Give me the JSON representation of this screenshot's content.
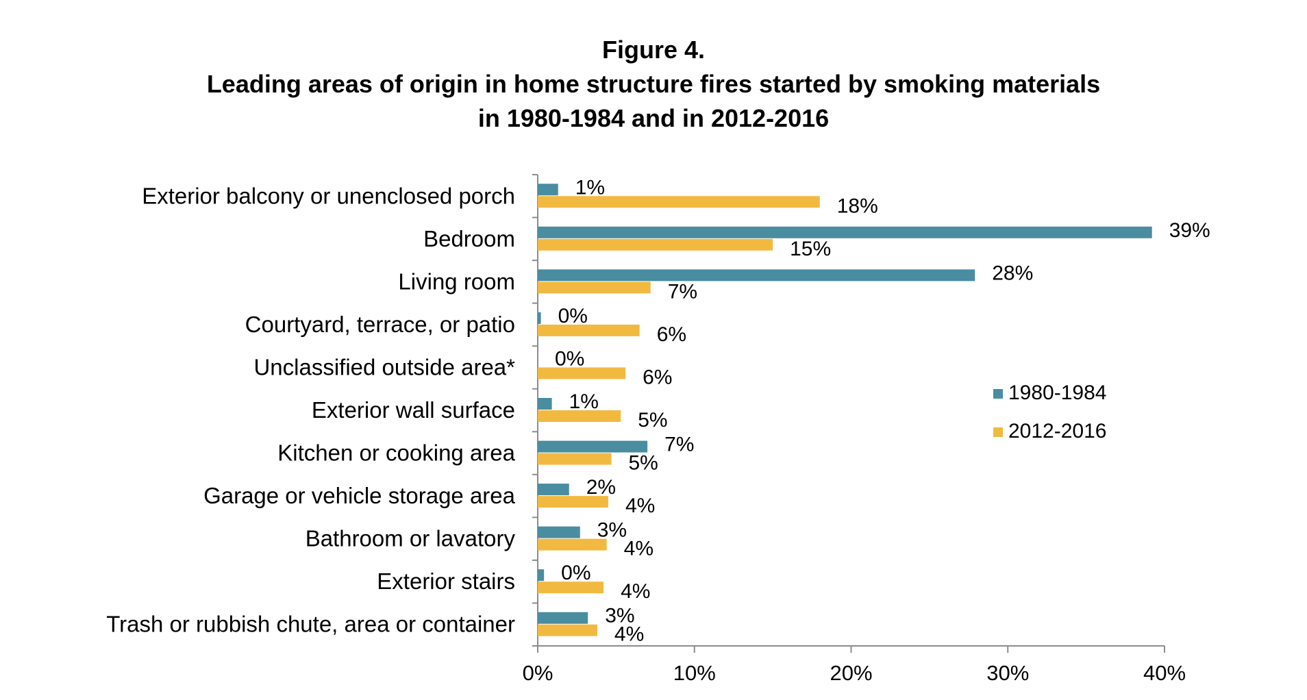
{
  "chart_data": {
    "type": "bar",
    "orientation": "horizontal",
    "title_lines": [
      "Figure 4.",
      "Leading areas of origin in home structure fires started by smoking materials",
      "in 1980-1984 and in 2012-2016"
    ],
    "categories": [
      "Exterior balcony or unenclosed porch",
      "Bedroom",
      "Living room",
      "Courtyard, terrace, or patio",
      "Unclassified outside area*",
      "Exterior wall surface",
      "Kitchen or cooking area",
      "Garage or vehicle storage area",
      "Bathroom or lavatory",
      "Exterior stairs",
      "Trash or rubbish chute, area or container"
    ],
    "series": [
      {
        "name": "1980-1984",
        "color": "#4a8ca0",
        "values": [
          1.3,
          39.2,
          27.9,
          0.2,
          0,
          0.9,
          7.0,
          2.0,
          2.7,
          0.4,
          3.2
        ],
        "labels": [
          "1%",
          "39%",
          "28%",
          "0%",
          "0%",
          "1%",
          "7%",
          "2%",
          "3%",
          "0%",
          "3%"
        ]
      },
      {
        "name": "2012-2016",
        "color": "#f2b941",
        "values": [
          18.0,
          15.0,
          7.2,
          6.5,
          5.6,
          5.3,
          4.7,
          4.5,
          4.4,
          4.2,
          3.8
        ],
        "labels": [
          "18%",
          "15%",
          "7%",
          "6%",
          "6%",
          "5%",
          "5%",
          "4%",
          "4%",
          "4%",
          "4%"
        ]
      }
    ],
    "xlim": [
      0,
      40
    ],
    "xticks": [
      "0%",
      "10%",
      "20%",
      "30%",
      "40%"
    ],
    "xlabel": "",
    "ylabel": "",
    "grid": false,
    "legend_position": "right"
  }
}
